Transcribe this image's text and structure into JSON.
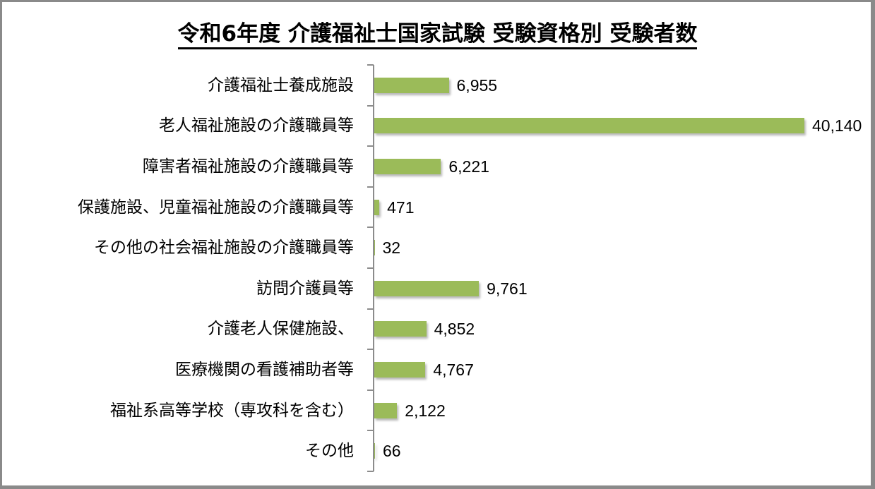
{
  "chart_data": {
    "type": "bar",
    "orientation": "horizontal",
    "title": "令和6年度 介護福祉士国家試験 受験資格別 受験者数",
    "xlabel": "",
    "ylabel": "",
    "grid": false,
    "legend": null,
    "bar_color": "#9BBB59",
    "categories": [
      "介護福祉士養成施設",
      "老人福祉施設の介護職員等",
      "障害者福祉施設の介護職員等",
      "保護施設、児童福祉施設の介護職員等",
      "その他の社会福祉施設の介護職員等",
      "訪問介護員等",
      "介護老人保健施設、",
      "医療機関の看護補助者等",
      "福祉系高等学校（専攻科を含む）",
      "その他"
    ],
    "values": [
      6955,
      40140,
      6221,
      471,
      32,
      9761,
      4852,
      4767,
      2122,
      66
    ],
    "value_labels": [
      "6,955",
      "40,140",
      "6,221",
      "471",
      "32",
      "9,761",
      "4,852",
      "4,767",
      "2,122",
      "66"
    ],
    "xlim": [
      0,
      40140
    ]
  }
}
